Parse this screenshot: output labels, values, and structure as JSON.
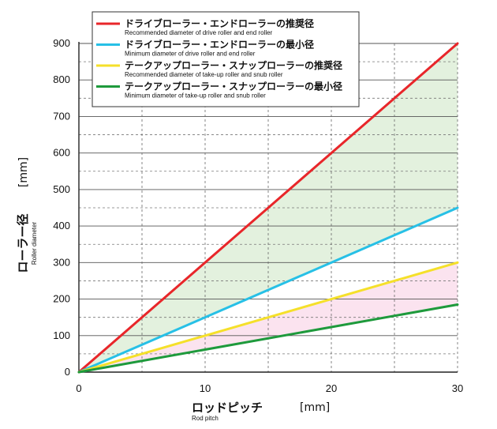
{
  "chart_data": {
    "type": "line",
    "x": [
      0,
      30
    ],
    "xlim": [
      0,
      30
    ],
    "ylim": [
      0,
      900
    ],
    "x_ticks": [
      "0",
      "10",
      "20",
      "30"
    ],
    "y_ticks": [
      "0",
      "100",
      "200",
      "300",
      "400",
      "500",
      "600",
      "700",
      "800",
      "900"
    ],
    "xlabel": "ロッドピッチ",
    "xlabel_en": "Rod pitch",
    "xlabel_unit": "[mm]",
    "ylabel": "ローラー径",
    "ylabel_en": "Roller diameter",
    "ylabel_unit": "[mm]",
    "grid": true,
    "legend_position": "top-left",
    "series": [
      {
        "name": "ドライブローラー・エンドローラーの推奨径",
        "name_en": "Recommended diameter of drive roller and end roller",
        "color": "#e8262a",
        "x": [
          0,
          30
        ],
        "values": [
          0,
          900
        ]
      },
      {
        "name": "ドライブローラー・エンドローラーの最小径",
        "name_en": "Minimum diameter of drive roller and end roller",
        "color": "#27c0e6",
        "x": [
          0,
          30
        ],
        "values": [
          0,
          450
        ]
      },
      {
        "name": "テークアップローラー・スナップローラーの推奨径",
        "name_en": "Recommended diameter of take-up roller and snub roller",
        "color": "#f5e02a",
        "x": [
          0,
          30
        ],
        "values": [
          0,
          300
        ]
      },
      {
        "name": "テークアップローラー・スナップローラーの最小径",
        "name_en": "Minimum diameter of take-up roller and snub roller",
        "color": "#1e9a3c",
        "x": [
          0,
          30
        ],
        "values": [
          0,
          185
        ]
      }
    ],
    "fills": [
      {
        "between": [
          0,
          1
        ],
        "color": "#e3f1de"
      },
      {
        "between": [
          2,
          3
        ],
        "color": "#fbe3ef"
      }
    ]
  }
}
